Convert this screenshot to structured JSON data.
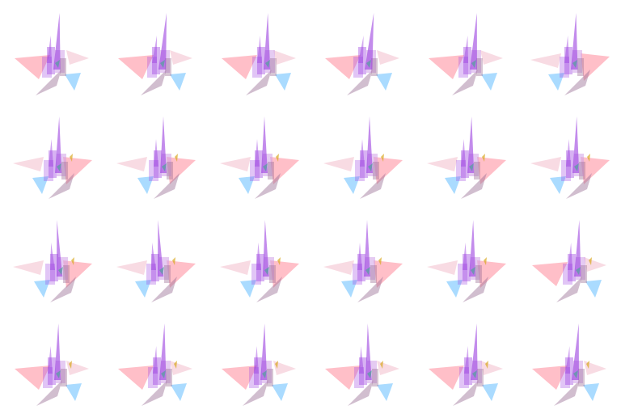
{
  "grid": {
    "columns": 6,
    "rows": 4
  },
  "palette": {
    "pink": "#ff8a9a",
    "mauve": "#9a6e94",
    "blue": "#56b8ff",
    "violet": "#9b3fe0",
    "lavender": "#cfa0e8",
    "blush": "#f2b8c8",
    "gold": "#d9a820",
    "teal": "#3fa890"
  },
  "figures": [
    {
      "row": 0,
      "col": 0,
      "spire_lean": 0.3,
      "big_wing": "left"
    },
    {
      "row": 0,
      "col": 1,
      "spire_lean": 0.5,
      "big_wing": "left"
    },
    {
      "row": 0,
      "col": 2,
      "spire_lean": 0.1,
      "big_wing": "left"
    },
    {
      "row": 0,
      "col": 3,
      "spire_lean": 0.6,
      "big_wing": "left"
    },
    {
      "row": 0,
      "col": 4,
      "spire_lean": 0.4,
      "big_wing": "left"
    },
    {
      "row": 0,
      "col": 5,
      "spire_lean": 0.2,
      "big_wing": "right"
    },
    {
      "row": 1,
      "col": 0,
      "spire_lean": 0.1,
      "big_wing": "right"
    },
    {
      "row": 1,
      "col": 1,
      "spire_lean": 0.0,
      "big_wing": "right"
    },
    {
      "row": 1,
      "col": 2,
      "spire_lean": 0.0,
      "big_wing": "right"
    },
    {
      "row": 1,
      "col": 3,
      "spire_lean": 0.0,
      "big_wing": "right"
    },
    {
      "row": 1,
      "col": 4,
      "spire_lean": 0.1,
      "big_wing": "right"
    },
    {
      "row": 1,
      "col": 5,
      "spire_lean": 0.1,
      "big_wing": "right"
    },
    {
      "row": 2,
      "col": 0,
      "spire_lean": -0.3,
      "big_wing": "right"
    },
    {
      "row": 2,
      "col": 1,
      "spire_lean": -0.3,
      "big_wing": "right"
    },
    {
      "row": 2,
      "col": 2,
      "spire_lean": -0.1,
      "big_wing": "right"
    },
    {
      "row": 2,
      "col": 3,
      "spire_lean": 0.0,
      "big_wing": "right"
    },
    {
      "row": 2,
      "col": 4,
      "spire_lean": 0.1,
      "big_wing": "right"
    },
    {
      "row": 2,
      "col": 5,
      "spire_lean": 0.2,
      "big_wing": "left"
    },
    {
      "row": 3,
      "col": 0,
      "spire_lean": 0.1,
      "big_wing": "left"
    },
    {
      "row": 3,
      "col": 1,
      "spire_lean": 0.2,
      "big_wing": "left"
    },
    {
      "row": 3,
      "col": 2,
      "spire_lean": 0.1,
      "big_wing": "left"
    },
    {
      "row": 3,
      "col": 3,
      "spire_lean": -0.1,
      "big_wing": "left"
    },
    {
      "row": 3,
      "col": 4,
      "spire_lean": 0.3,
      "big_wing": "left"
    },
    {
      "row": 3,
      "col": 5,
      "spire_lean": 0.4,
      "big_wing": "left"
    }
  ]
}
